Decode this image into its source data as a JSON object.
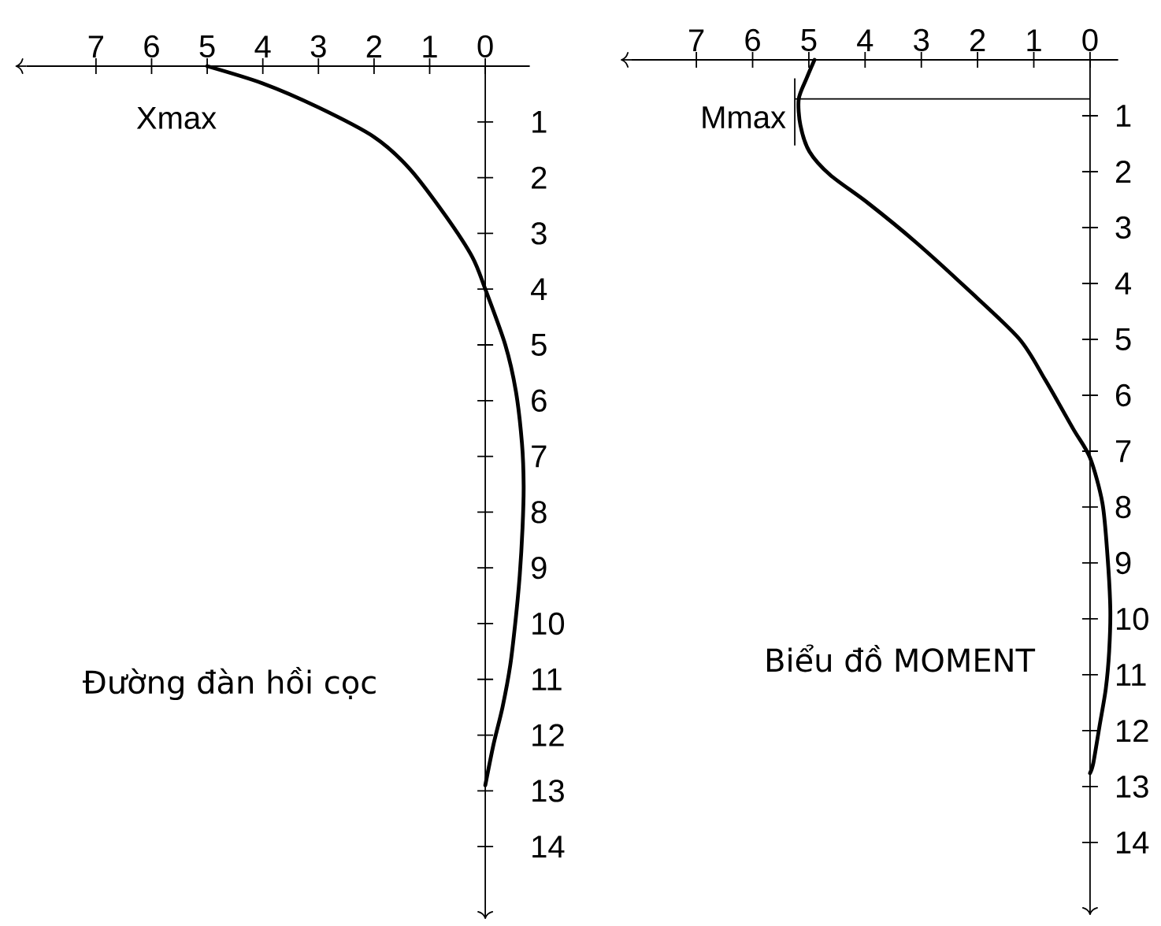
{
  "chart_data": [
    {
      "type": "line",
      "title": "Đường đàn hồi cọc",
      "color": "#000000",
      "x": [
        5,
        4,
        3,
        2,
        1.36,
        0.71,
        0.23,
        0,
        -0.36,
        -0.55,
        -0.66,
        -0.69,
        -0.67,
        -0.62,
        -0.55,
        -0.45,
        -0.31,
        -0.15,
        0
      ],
      "values": [
        0,
        0.31,
        0.74,
        1.27,
        1.84,
        2.69,
        3.43,
        4.0,
        5.0,
        5.83,
        6.77,
        7.53,
        8.28,
        9.13,
        9.89,
        10.74,
        11.5,
        12.16,
        12.9
      ],
      "xlim": [
        8.25,
        -0.8
      ],
      "ylim": [
        15.1,
        0
      ],
      "xticks": [
        0,
        1,
        2,
        3,
        4,
        5,
        6,
        7
      ],
      "yticks": [
        1,
        2,
        3,
        4,
        5,
        6,
        7,
        8,
        9,
        10,
        11,
        12,
        13,
        14
      ],
      "annotations": [
        "Xmax"
      ]
    },
    {
      "type": "line",
      "title": "Biểu đồ MOMENT",
      "color": "#000000",
      "x": [
        4.9,
        5.04,
        5.18,
        5.15,
        4.99,
        4.62,
        3.95,
        3.1,
        2.18,
        1.26,
        0.8,
        0.3,
        0,
        -0.22,
        -0.31,
        -0.36,
        -0.34,
        -0.28,
        -0.17,
        -0.06,
        0
      ],
      "values": [
        0,
        0.33,
        0.7,
        1.17,
        1.64,
        2.06,
        2.56,
        3.26,
        4.1,
        4.99,
        5.72,
        6.6,
        7.12,
        7.93,
        8.87,
        9.82,
        10.58,
        11.25,
        11.91,
        12.57,
        12.76
      ],
      "xlim": [
        8.15,
        -0.5
      ],
      "ylim": [
        15.1,
        0
      ],
      "xticks": [
        0,
        1,
        2,
        3,
        4,
        5,
        6,
        7
      ],
      "yticks": [
        1,
        2,
        3,
        4,
        5,
        6,
        7,
        8,
        9,
        10,
        11,
        12,
        13,
        14
      ],
      "ref_lines": [
        {
          "axis": "x",
          "value": 5.25,
          "label": "Mmax"
        },
        {
          "axis": "y",
          "value": 0.7
        }
      ]
    }
  ]
}
